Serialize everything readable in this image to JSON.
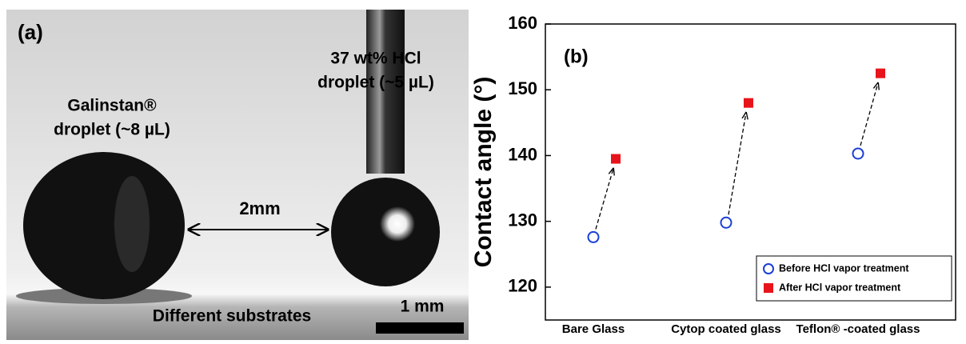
{
  "panel_a": {
    "label": "(a)",
    "left_droplet": [
      "Galinstan®",
      "droplet  (~8 µL)"
    ],
    "right_droplet": [
      "37 wt% HCl",
      "droplet (~5 µL)"
    ],
    "gap": "2mm",
    "substrate": "Different substrates",
    "scale_bar": "1 mm"
  },
  "chart_data": {
    "type": "scatter",
    "panel_label": "(b)",
    "y_label": "Contact angle (°)",
    "categories": [
      "Bare Glass",
      "Cytop coated glass",
      "Teflon® -coated glass"
    ],
    "series": [
      {
        "name": "Before HCl vapor treatment",
        "color": "#1a3fd6",
        "marker": "open-circle",
        "values": [
          127.6,
          129.8,
          140.3
        ]
      },
      {
        "name": "After HCl vapor treatment",
        "color": "#e8141b",
        "marker": "filled-square",
        "values": [
          139.5,
          148.0,
          152.5
        ]
      }
    ],
    "ylim": [
      115,
      160
    ],
    "yticks": [
      120,
      130,
      140,
      150,
      160
    ],
    "legend": "lower right",
    "arrows": true
  }
}
